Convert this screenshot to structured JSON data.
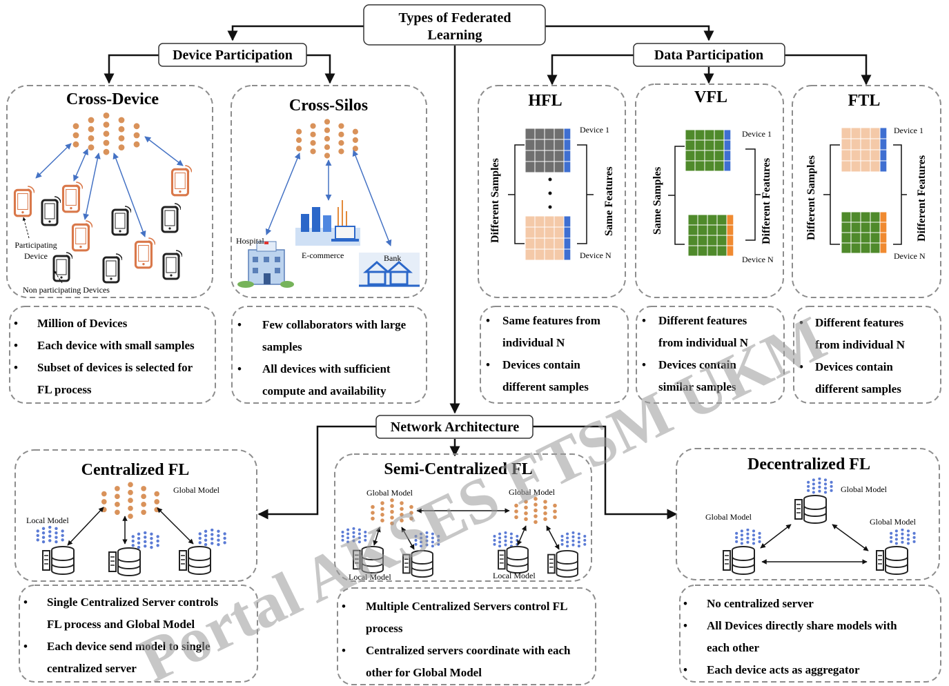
{
  "top": {
    "title_line1": "Types of Federated",
    "title_line2": "Learning",
    "device_participation": "Device Participation",
    "data_participation": "Data Participation",
    "network_architecture": "Network Architecture"
  },
  "cross_device": {
    "title": "Cross-Device",
    "participating_line1": "Participating",
    "participating_line2": "Device",
    "non_participating": "Non participating  Devices",
    "bullets": [
      "Million of Devices",
      "Each device with small samples",
      "Subset of devices is selected for",
      "FL process"
    ]
  },
  "cross_silos": {
    "title": "Cross-Silos",
    "hospital": "Hospital",
    "ecommerce": "E-commerce",
    "bank": "Bank",
    "bullets": [
      "Few collaborators with large",
      "samples",
      "All  devices with sufficient",
      "compute and availability"
    ]
  },
  "hfl": {
    "title": "HFL",
    "device_1": "Device 1",
    "device_n": "Device N",
    "left_label": "Different Samples",
    "right_label": "Same Features",
    "bullets": [
      "Same features from",
      "individual N",
      "Devices contain",
      "different samples"
    ]
  },
  "vfl": {
    "title": "VFL",
    "device_1": "Device 1",
    "device_n": "Device N",
    "left_label": "Same Samples",
    "right_label": "Different Features",
    "bullets": [
      "Different features",
      "from individual N",
      "Devices contain",
      "similar samples"
    ]
  },
  "ftl": {
    "title": "FTL",
    "device_1": "Device 1",
    "device_n": "Device N",
    "left_label": "Different Samples",
    "right_label": "Different Features",
    "bullets": [
      "Different features",
      "from individual N",
      "Devices contain",
      "different samples"
    ]
  },
  "centralized": {
    "title": "Centralized FL",
    "global_model": "Global Model",
    "local_model": "Local Model",
    "bullets": [
      "Single Centralized Server controls",
      "FL process and Global Model",
      "Each device send model to single",
      "centralized server"
    ]
  },
  "semi": {
    "title": "Semi-Centralized  FL",
    "global_model": "Global Model",
    "local_model": "Local Model",
    "bullets": [
      "Multiple Centralized  Servers control FL",
      "process",
      "Centralized  servers coordinate with each",
      "other for Global Model"
    ]
  },
  "decentralized": {
    "title": "Decentralized FL",
    "global_model": "Global Model",
    "bullets": [
      "No centralized server",
      "All Devices directly share models with",
      "each other",
      "Each device acts as  aggregator"
    ]
  },
  "watermark": "Portal AKSES FTSM UKM",
  "colors": {
    "orange_node": "#d9925a",
    "blue_node": "#5b7bd5",
    "grid_gray": "#6f6f6f",
    "grid_peach": "#f4c9a8",
    "grid_green": "#4f8a2b",
    "col_blue": "#3f6fd1",
    "col_orange": "#f08a30"
  }
}
